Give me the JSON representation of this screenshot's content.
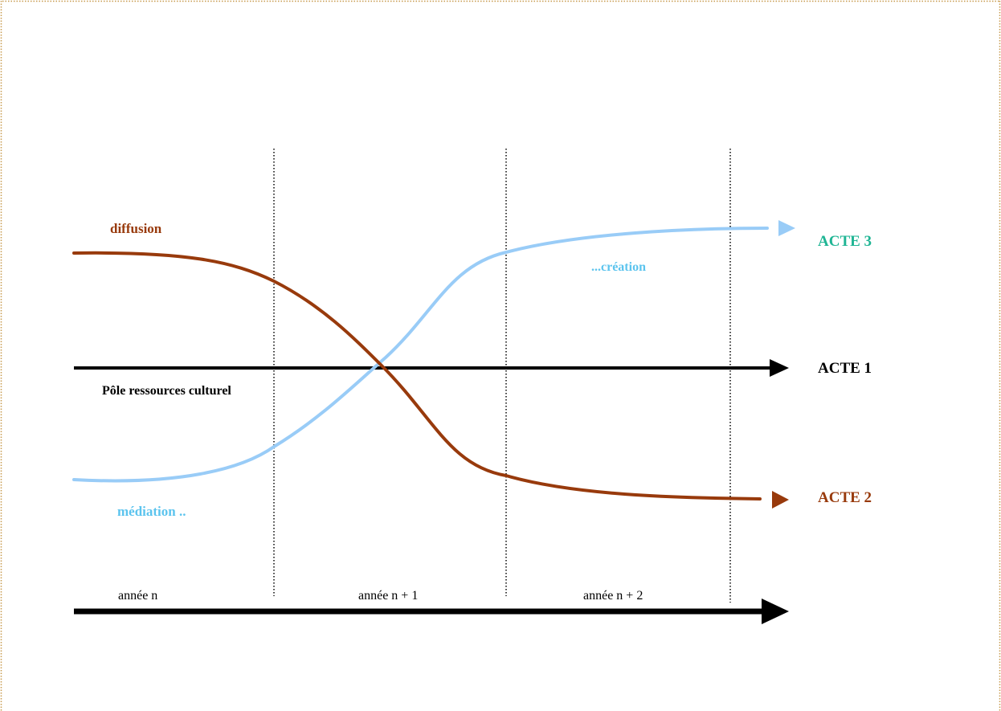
{
  "labels": {
    "diffusion": "diffusion",
    "creation": "...création",
    "mediation": "médiation ..",
    "pole": "Pôle ressources culturel",
    "acte3": "ACTE 3",
    "acte1": "ACTE 1",
    "acte2": "ACTE 2"
  },
  "timeline": {
    "years": [
      "année n",
      "année n + 1",
      "année n + 2"
    ]
  },
  "colors": {
    "diffusion": "#983a0c",
    "creation": "#99ccf7",
    "creation_text": "#5cc4ee",
    "acte3": "#1fb594",
    "axis": "#000000",
    "frame": "#c79a4c"
  }
}
